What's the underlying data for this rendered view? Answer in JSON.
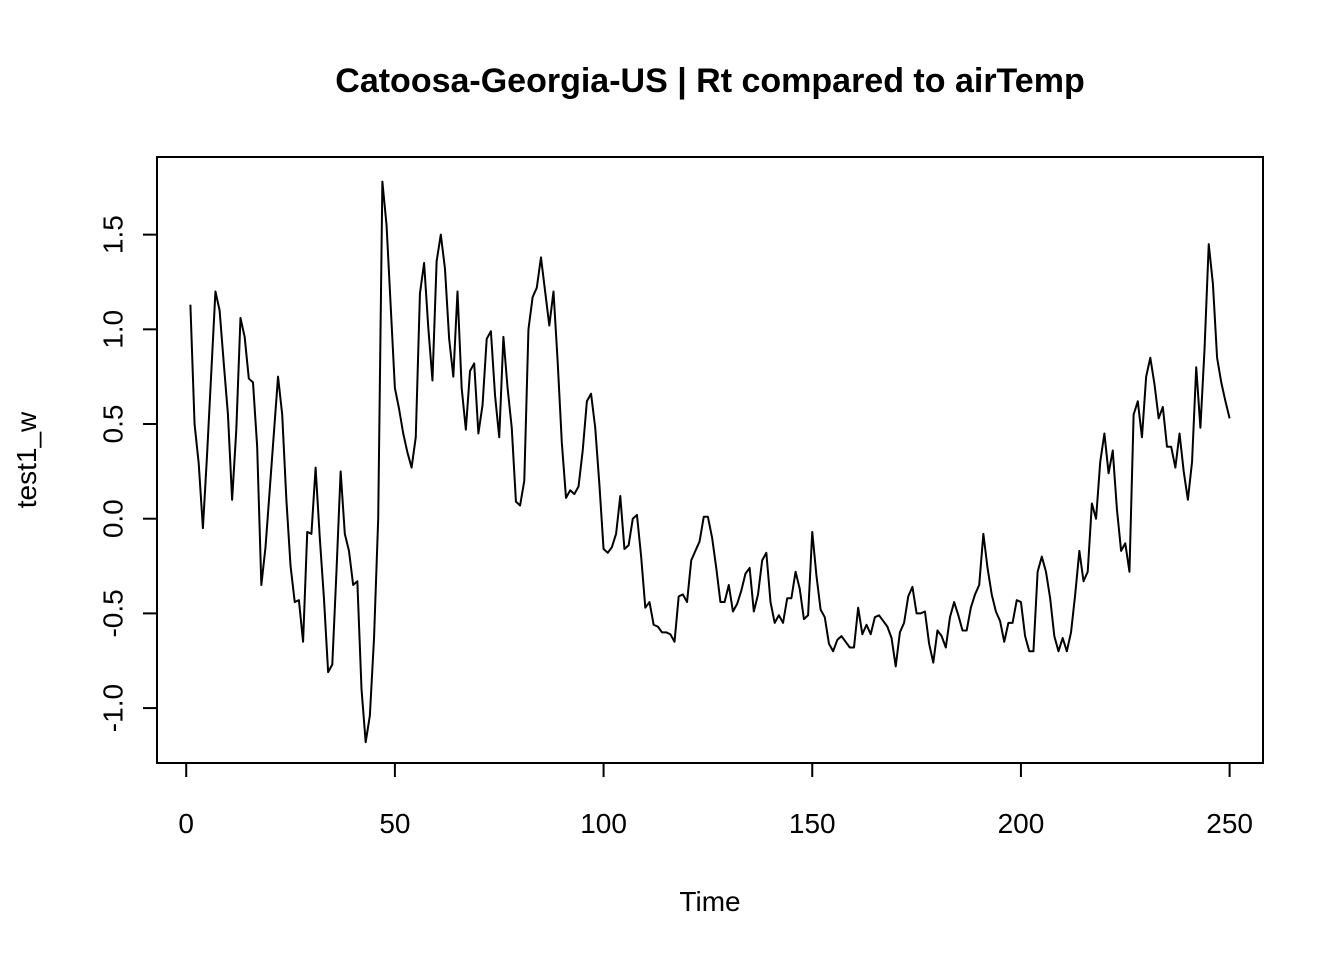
{
  "chart_data": {
    "type": "line",
    "title": "Catoosa-Georgia-US | Rt compared to airTemp",
    "xlabel": "Time",
    "ylabel": "test1_w",
    "xlim": [
      -7,
      258
    ],
    "ylim": [
      -1.29,
      1.91
    ],
    "xticks": [
      0,
      50,
      100,
      150,
      200,
      250
    ],
    "yticks": [
      -1.0,
      -0.5,
      0.0,
      0.5,
      1.0,
      1.5
    ],
    "ytick_labels": [
      "-1.0",
      "-0.5",
      "0.0",
      "0.5",
      "1.0",
      "1.5"
    ],
    "grid": false,
    "color": "#000000",
    "series": [
      {
        "x_start": 1,
        "values": [
          1.13,
          0.5,
          0.29,
          -0.05,
          0.34,
          0.77,
          1.2,
          1.1,
          0.82,
          0.55,
          0.1,
          0.47,
          1.06,
          0.96,
          0.74,
          0.72,
          0.38,
          -0.35,
          -0.15,
          0.15,
          0.45,
          0.75,
          0.55,
          0.1,
          -0.25,
          -0.44,
          -0.43,
          -0.65,
          -0.07,
          -0.08,
          0.27,
          -0.1,
          -0.42,
          -0.81,
          -0.77,
          -0.28,
          0.25,
          -0.08,
          -0.17,
          -0.35,
          -0.33,
          -0.9,
          -1.18,
          -1.04,
          -0.63,
          0.0,
          1.78,
          1.55,
          1.12,
          0.69,
          0.58,
          0.45,
          0.35,
          0.27,
          0.43,
          1.19,
          1.35,
          1.01,
          0.73,
          1.36,
          1.5,
          1.32,
          0.95,
          0.75,
          1.2,
          0.69,
          0.47,
          0.78,
          0.82,
          0.45,
          0.6,
          0.95,
          0.99,
          0.65,
          0.43,
          0.96,
          0.69,
          0.48,
          0.09,
          0.07,
          0.2,
          1.0,
          1.17,
          1.22,
          1.38,
          1.2,
          1.02,
          1.2,
          0.83,
          0.4,
          0.11,
          0.15,
          0.13,
          0.17,
          0.36,
          0.62,
          0.66,
          0.48,
          0.18,
          -0.16,
          -0.18,
          -0.15,
          -0.08,
          0.12,
          -0.16,
          -0.14,
          0.0,
          0.02,
          -0.2,
          -0.47,
          -0.44,
          -0.56,
          -0.57,
          -0.6,
          -0.6,
          -0.61,
          -0.65,
          -0.41,
          -0.4,
          -0.44,
          -0.22,
          -0.17,
          -0.12,
          0.01,
          0.01,
          -0.1,
          -0.26,
          -0.44,
          -0.44,
          -0.35,
          -0.49,
          -0.45,
          -0.38,
          -0.29,
          -0.26,
          -0.49,
          -0.4,
          -0.22,
          -0.18,
          -0.44,
          -0.55,
          -0.51,
          -0.55,
          -0.42,
          -0.42,
          -0.28,
          -0.37,
          -0.53,
          -0.51,
          -0.07,
          -0.3,
          -0.48,
          -0.52,
          -0.66,
          -0.7,
          -0.64,
          -0.62,
          -0.65,
          -0.68,
          -0.68,
          -0.47,
          -0.61,
          -0.56,
          -0.61,
          -0.52,
          -0.51,
          -0.54,
          -0.57,
          -0.63,
          -0.78,
          -0.6,
          -0.55,
          -0.41,
          -0.36,
          -0.5,
          -0.5,
          -0.49,
          -0.66,
          -0.76,
          -0.59,
          -0.62,
          -0.68,
          -0.52,
          -0.44,
          -0.51,
          -0.59,
          -0.59,
          -0.47,
          -0.4,
          -0.35,
          -0.08,
          -0.26,
          -0.4,
          -0.49,
          -0.54,
          -0.65,
          -0.55,
          -0.55,
          -0.43,
          -0.44,
          -0.62,
          -0.7,
          -0.7,
          -0.28,
          -0.2,
          -0.28,
          -0.42,
          -0.62,
          -0.7,
          -0.63,
          -0.7,
          -0.6,
          -0.4,
          -0.17,
          -0.33,
          -0.28,
          0.08,
          0.0,
          0.3,
          0.45,
          0.24,
          0.36,
          0.05,
          -0.17,
          -0.13,
          -0.28,
          0.55,
          0.62,
          0.43,
          0.75,
          0.85,
          0.71,
          0.53,
          0.59,
          0.38,
          0.38,
          0.27,
          0.45,
          0.25,
          0.1,
          0.3,
          0.8,
          0.48,
          0.9,
          1.45,
          1.24,
          0.85,
          0.72,
          0.62,
          0.53
        ]
      }
    ]
  }
}
